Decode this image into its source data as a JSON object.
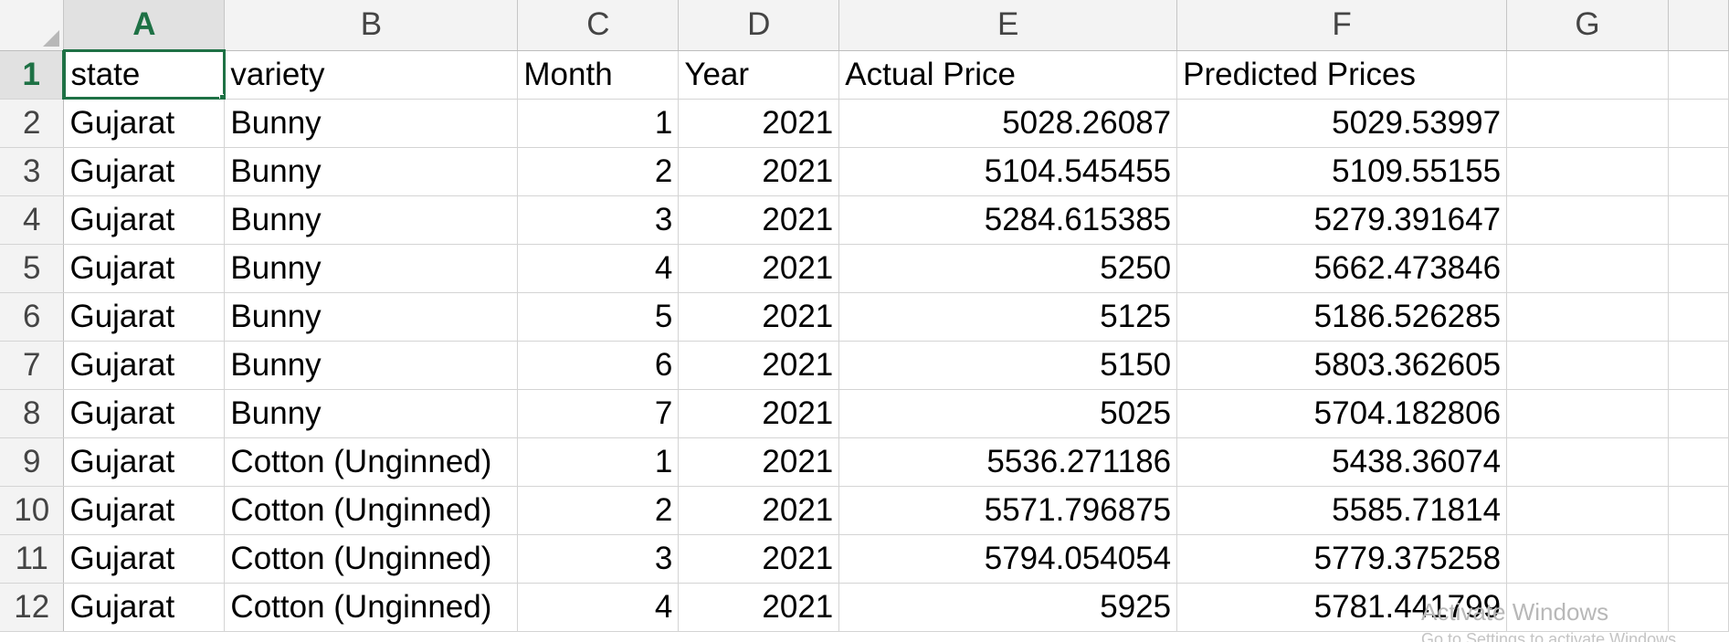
{
  "columns": [
    "A",
    "B",
    "C",
    "D",
    "E",
    "F",
    "G"
  ],
  "active_column": "A",
  "active_row": 1,
  "rows": [
    {
      "n": "1",
      "cells": [
        "state",
        "variety",
        "Month",
        "Year",
        "Actual Price",
        "Predicted Prices",
        ""
      ]
    },
    {
      "n": "2",
      "cells": [
        "Gujarat",
        "Bunny",
        "1",
        "2021",
        "5028.26087",
        "5029.53997",
        ""
      ]
    },
    {
      "n": "3",
      "cells": [
        "Gujarat",
        "Bunny",
        "2",
        "2021",
        "5104.545455",
        "5109.55155",
        ""
      ]
    },
    {
      "n": "4",
      "cells": [
        "Gujarat",
        "Bunny",
        "3",
        "2021",
        "5284.615385",
        "5279.391647",
        ""
      ]
    },
    {
      "n": "5",
      "cells": [
        "Gujarat",
        "Bunny",
        "4",
        "2021",
        "5250",
        "5662.473846",
        ""
      ]
    },
    {
      "n": "6",
      "cells": [
        "Gujarat",
        "Bunny",
        "5",
        "2021",
        "5125",
        "5186.526285",
        ""
      ]
    },
    {
      "n": "7",
      "cells": [
        "Gujarat",
        "Bunny",
        "6",
        "2021",
        "5150",
        "5803.362605",
        ""
      ]
    },
    {
      "n": "8",
      "cells": [
        "Gujarat",
        "Bunny",
        "7",
        "2021",
        "5025",
        "5704.182806",
        ""
      ]
    },
    {
      "n": "9",
      "cells": [
        "Gujarat",
        "Cotton (Unginned)",
        "1",
        "2021",
        "5536.271186",
        "5438.36074",
        ""
      ]
    },
    {
      "n": "10",
      "cells": [
        "Gujarat",
        "Cotton (Unginned)",
        "2",
        "2021",
        "5571.796875",
        "5585.71814",
        ""
      ]
    },
    {
      "n": "11",
      "cells": [
        "Gujarat",
        "Cotton (Unginned)",
        "3",
        "2021",
        "5794.054054",
        "5779.375258",
        ""
      ]
    },
    {
      "n": "12",
      "cells": [
        "Gujarat",
        "Cotton (Unginned)",
        "4",
        "2021",
        "5925",
        "5781.441799",
        ""
      ]
    }
  ],
  "watermark": {
    "title": "Activate Windows",
    "subtitle": "Go to Settings to activate Windows."
  },
  "colors": {
    "accent": "#1e7145",
    "header_bg": "#f3f3f3",
    "gridline": "#d4d4d4"
  }
}
